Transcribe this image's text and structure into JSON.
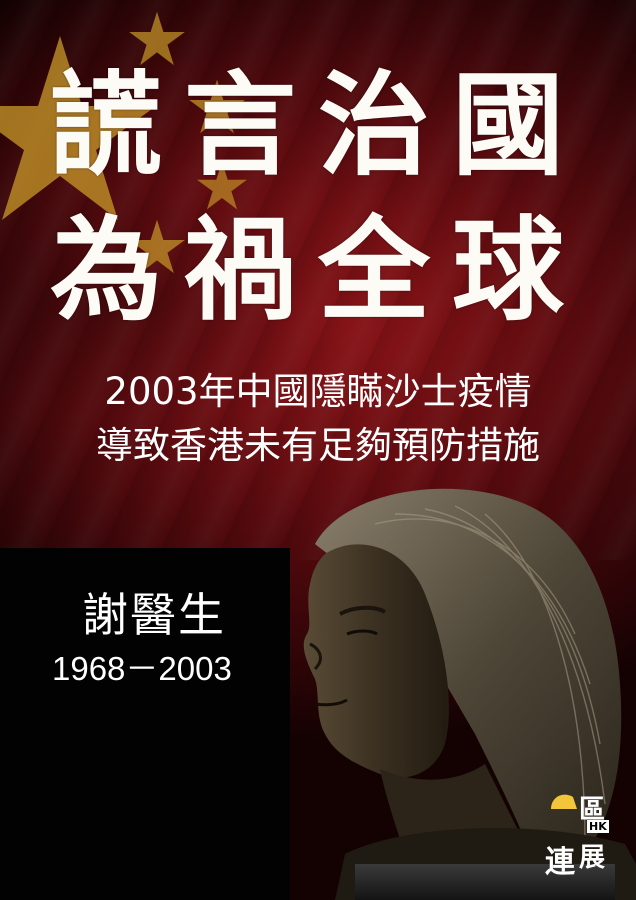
{
  "title": {
    "line1": "謊言治國",
    "line2": "為禍全球"
  },
  "subtitle": {
    "line1": "2003年中國隱瞞沙士疫情",
    "line2": "導致香港未有足夠預防措施"
  },
  "person": {
    "name": "謝醫生",
    "years": "1968－2003"
  },
  "logo": {
    "chars": [
      "區",
      "HK",
      "展",
      "連"
    ],
    "accent": "#f2c53a"
  },
  "colors": {
    "flag_red": "#8e1418",
    "star_yellow": "#d4a82b",
    "text": "#ffffff"
  }
}
